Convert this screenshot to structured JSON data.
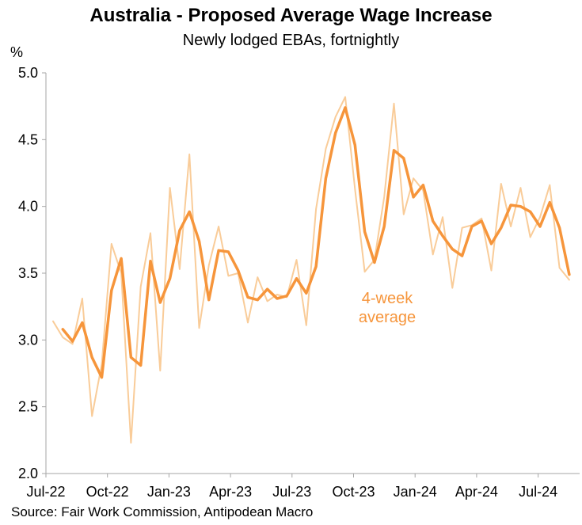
{
  "title": "Australia - Proposed Average Wage Increase",
  "subtitle": "Newly lodged EBAs, fortnightly",
  "source": "Source: Fair Work Commission, Antipodean Macro",
  "colors": {
    "fortnightly": "#F9CC99",
    "average": "#F6953B",
    "axis": "#A6A6A6"
  },
  "chart_data": {
    "type": "line",
    "title": "Australia - Proposed Average Wage Increase",
    "subtitle": "Newly lodged EBAs, fortnightly",
    "ylabel": "%",
    "ylim": [
      2.0,
      5.0
    ],
    "yticks": [
      "2.0",
      "2.5",
      "3.0",
      "3.5",
      "4.0",
      "4.5",
      "5.0"
    ],
    "xticks": [
      "Jul-22",
      "Oct-22",
      "Jan-23",
      "Apr-23",
      "Jul-23",
      "Oct-23",
      "Jan-24",
      "Apr-24",
      "Jul-24"
    ],
    "grid": false,
    "annotation": {
      "lines": [
        "4-week",
        "average"
      ]
    },
    "series": [
      {
        "values": [
          3.14,
          3.02,
          2.97,
          3.31,
          2.43,
          2.82,
          3.72,
          3.5,
          2.23,
          3.4,
          3.8,
          2.77,
          4.14,
          3.53,
          4.39,
          3.09,
          3.56,
          3.85,
          3.48,
          3.5,
          3.13,
          3.47,
          3.29,
          3.34,
          3.32,
          3.6,
          3.11,
          3.98,
          4.43,
          4.67,
          4.82,
          4.13,
          3.51,
          3.6,
          4.07,
          4.77,
          3.94,
          4.21,
          4.12,
          3.64,
          3.92,
          3.39,
          3.84,
          3.86,
          3.91,
          3.52,
          4.17,
          3.85,
          4.14,
          3.77,
          3.92,
          4.16,
          3.54,
          3.45
        ]
      },
      {
        "values": [
          3.08,
          2.99,
          3.13,
          2.87,
          2.72,
          3.37,
          3.61,
          2.87,
          2.81,
          3.59,
          3.28,
          3.46,
          3.82,
          3.96,
          3.74,
          3.3,
          3.67,
          3.66,
          3.52,
          3.32,
          3.3,
          3.38,
          3.31,
          3.33,
          3.46,
          3.35,
          3.55,
          4.21,
          4.55,
          4.74,
          4.46,
          3.81,
          3.58,
          3.85,
          4.42,
          4.36,
          4.07,
          4.16,
          3.89,
          3.78,
          3.68,
          3.63,
          3.85,
          3.89,
          3.72,
          3.84,
          4.01,
          4.0,
          3.96,
          3.85,
          4.03,
          3.84,
          3.49
        ]
      }
    ]
  }
}
